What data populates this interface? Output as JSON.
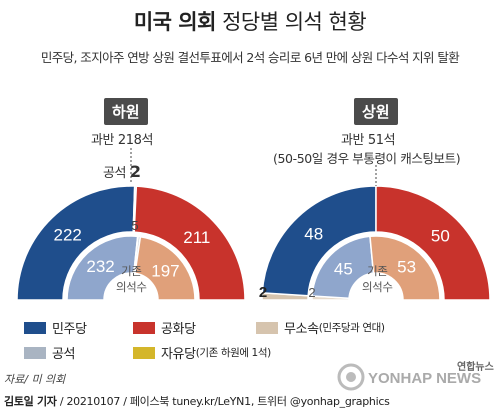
{
  "title_bold": "미국 의회",
  "title_rest": "정당별 의석 현황",
  "subtitle": "민주당, 조지아주 연방 상원 결선투표에서 2석 승리로 6년 만에 상원 다수석 지위 탈환",
  "chart_data": [
    {
      "type": "pie",
      "chamber": "하원",
      "majority_label": "과반 218석",
      "outer_ring": [
        {
          "party": "민주당",
          "value": 222,
          "color": "#1f4e8c"
        },
        {
          "party": "공석",
          "value": 2,
          "color": "#a9b4c2"
        },
        {
          "party": "공화당",
          "value": 211,
          "color": "#c8332c"
        }
      ],
      "inner_ring": [
        {
          "party": "민주당",
          "value": 232,
          "color": "#8fa6cc"
        },
        {
          "party": "자유당",
          "value": 1,
          "color": "#d4b62a"
        },
        {
          "party": "공석",
          "value": 5,
          "color": "#c9cfd8"
        },
        {
          "party": "공화당",
          "value": 197,
          "color": "#e0a07a"
        }
      ],
      "vacancy_label": "공석",
      "vacancy_value": "2",
      "inner_vacancy_value": "5",
      "center_label_1": "기존",
      "center_label_2": "의석수"
    },
    {
      "type": "pie",
      "chamber": "상원",
      "majority_label": "과반 51석",
      "majority_note": "(50-50일 경우 부통령이 캐스팅보트)",
      "outer_ring": [
        {
          "party": "무소속",
          "value": 2,
          "color": "#d6c4ae"
        },
        {
          "party": "민주당",
          "value": 48,
          "color": "#1f4e8c"
        },
        {
          "party": "공화당",
          "value": 50,
          "color": "#c8332c"
        }
      ],
      "inner_ring": [
        {
          "party": "무소속",
          "value": 2,
          "color": "#e6dacb"
        },
        {
          "party": "민주당",
          "value": 45,
          "color": "#8fa6cc"
        },
        {
          "party": "공화당",
          "value": 53,
          "color": "#e0a07a"
        }
      ],
      "independent_outer_value": "2",
      "independent_inner_value": "2",
      "center_label_1": "기존",
      "center_label_2": "의석수"
    }
  ],
  "legend": [
    {
      "name": "민주당",
      "color": "#1f4e8c",
      "note": ""
    },
    {
      "name": "공화당",
      "color": "#c8332c",
      "note": ""
    },
    {
      "name": "무소속",
      "color": "#d6c4ae",
      "note": "(민주당과 연대)"
    },
    {
      "name": "공석",
      "color": "#a9b4c2",
      "note": ""
    },
    {
      "name": "자유당",
      "color": "#d4b62a",
      "note": "(기존 하원에 1석)"
    }
  ],
  "source": "자료/ 미 의회",
  "footer_author": "김토일 기자",
  "footer_rest": " / 20210107 / 페이스북 tuney.kr/LeYN1, 트위터 @yonhap_graphics",
  "logo_text": "YONHAP NEWS",
  "logo_kr": "연합뉴스"
}
